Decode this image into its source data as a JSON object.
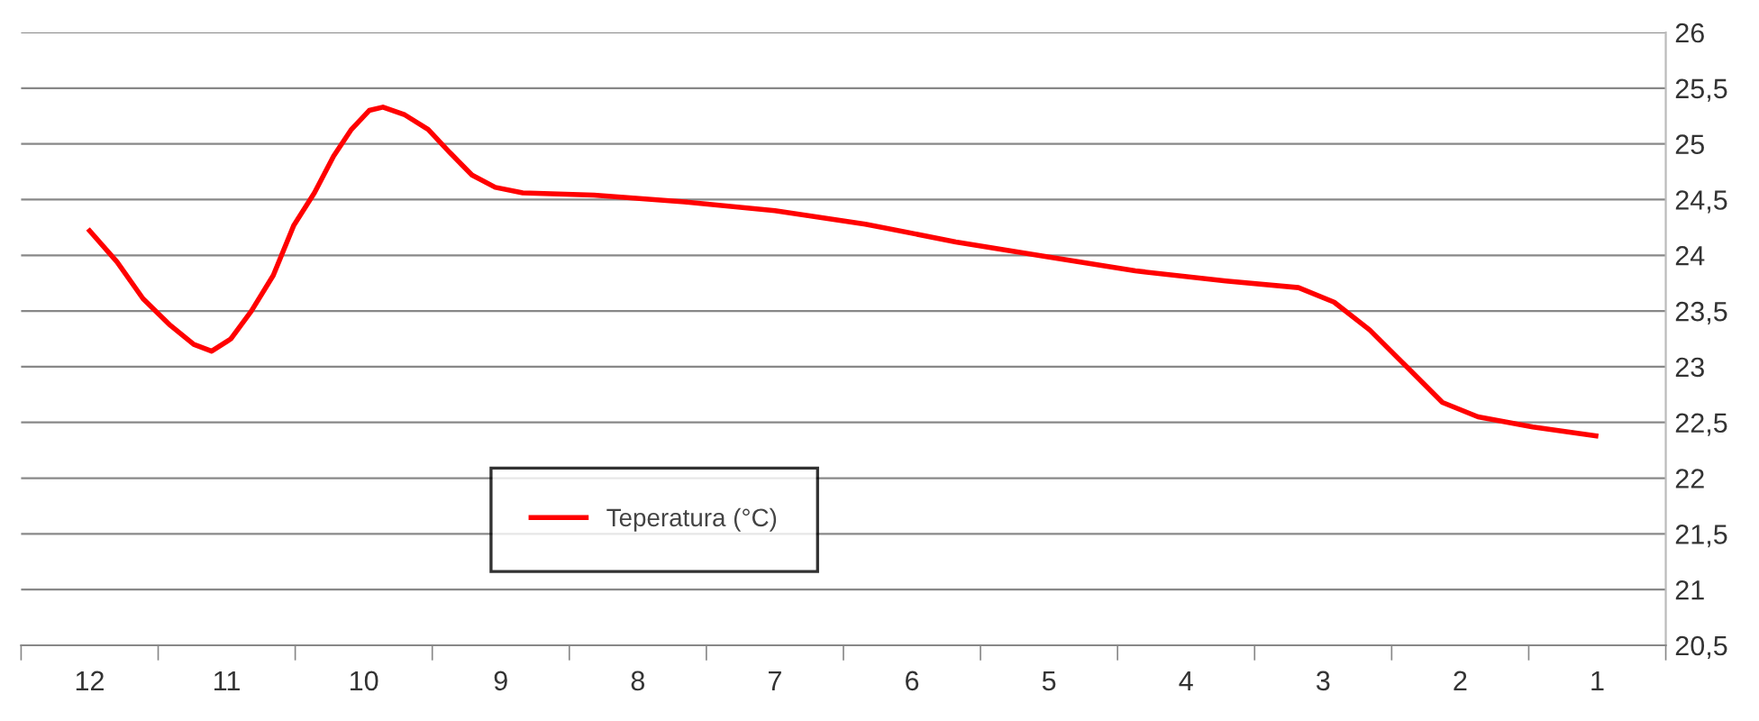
{
  "chart_data": {
    "type": "line",
    "x": [
      12,
      11.8,
      11.61,
      11.41,
      11.24,
      11.11,
      10.97,
      10.82,
      10.66,
      10.51,
      10.36,
      10.22,
      10.09,
      9.96,
      9.86,
      9.7,
      9.53,
      9.37,
      9.21,
      9.04,
      8.84,
      8.32,
      7.66,
      7.0,
      6.34,
      5.68,
      5.03,
      4.37,
      3.71,
      3.18,
      2.92,
      2.66,
      2.39,
      2.13,
      1.87,
      1.47,
      1.01
    ],
    "series": [
      {
        "name": "Teperatura (°C)",
        "color": "#ff0000",
        "values": [
          24.22,
          23.94,
          23.61,
          23.37,
          23.2,
          23.14,
          23.25,
          23.5,
          23.82,
          24.27,
          24.56,
          24.89,
          25.13,
          25.3,
          25.33,
          25.26,
          25.13,
          24.92,
          24.72,
          24.61,
          24.56,
          24.54,
          24.48,
          24.4,
          24.28,
          24.12,
          23.99,
          23.86,
          23.77,
          23.71,
          23.58,
          23.33,
          23.0,
          22.68,
          22.55,
          22.46,
          22.38
        ]
      }
    ],
    "xlim": [
      12.5,
      0.5
    ],
    "xticks": [
      12,
      11,
      10,
      9,
      8,
      7,
      6,
      5,
      4,
      3,
      2,
      1,
      {
        "value": 12.5,
        "label": null
      },
      {
        "value": 11.5,
        "label": null
      },
      {
        "value": 10.5,
        "label": null
      },
      {
        "value": 9.5,
        "label": null
      },
      {
        "value": 8.5,
        "label": null
      },
      {
        "value": 7.5,
        "label": null
      },
      {
        "value": 6.5,
        "label": null
      },
      {
        "value": 5.5,
        "label": null
      },
      {
        "value": 4.5,
        "label": null
      },
      {
        "value": 3.5,
        "label": null
      },
      {
        "value": 2.5,
        "label": null
      },
      {
        "value": 1.5,
        "label": null
      },
      {
        "value": 0.5,
        "label": null
      }
    ],
    "ylim": [
      20.5,
      26
    ],
    "yticks": [
      {
        "value": 20.5,
        "label": "20,5"
      },
      21,
      {
        "value": 21.5,
        "label": "21,5"
      },
      22,
      {
        "value": 22.5,
        "label": "22,5"
      },
      23,
      {
        "value": 23.5,
        "label": "23,5"
      },
      24,
      {
        "value": 24.5,
        "label": "24,5"
      },
      25,
      {
        "value": 25.5,
        "label": "25,5"
      },
      26
    ],
    "grid": "y",
    "legend": "lower center",
    "marker": "none",
    "line_style": "solid"
  }
}
